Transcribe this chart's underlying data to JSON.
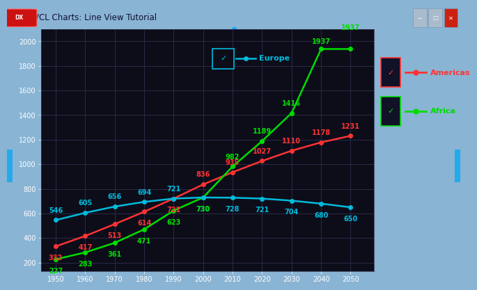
{
  "years": [
    1950,
    1960,
    1970,
    1980,
    1990,
    2000,
    2010,
    2020,
    2030,
    2040,
    2050
  ],
  "americas": [
    332,
    417,
    513,
    614,
    721,
    836,
    935,
    1027,
    1110,
    1178,
    1231
  ],
  "africa": [
    227,
    283,
    361,
    471,
    623,
    730,
    982,
    1189,
    1416,
    1937,
    1937
  ],
  "europe": [
    546,
    605,
    656,
    694,
    721,
    730,
    728,
    721,
    704,
    680,
    650
  ],
  "americas_color": "#ff3333",
  "africa_color": "#00dd00",
  "europe_color": "#00bbdd",
  "window_bg": "#8ab4d4",
  "chart_bg": "#0d0d1a",
  "grid_color": "#2a2a45",
  "right_pane_bg": "#111128",
  "ylabel_values": [
    200,
    400,
    600,
    800,
    1000,
    1200,
    1400,
    1600,
    1800,
    2000
  ],
  "ylim": [
    130,
    2100
  ],
  "xlim": [
    1945,
    2058
  ],
  "title_text": "VCL Charts: Line View Tutorial",
  "am_label_offsets_y": [
    -12,
    -12,
    -12,
    -12,
    -12,
    10,
    10,
    10,
    10,
    10,
    10
  ],
  "eu_label_offsets_y": [
    10,
    10,
    10,
    10,
    10,
    -12,
    -12,
    -12,
    -12,
    -12,
    -12
  ],
  "af_label_offsets_y": [
    -12,
    -12,
    -12,
    -12,
    -12,
    -12,
    10,
    10,
    10,
    10,
    10
  ]
}
